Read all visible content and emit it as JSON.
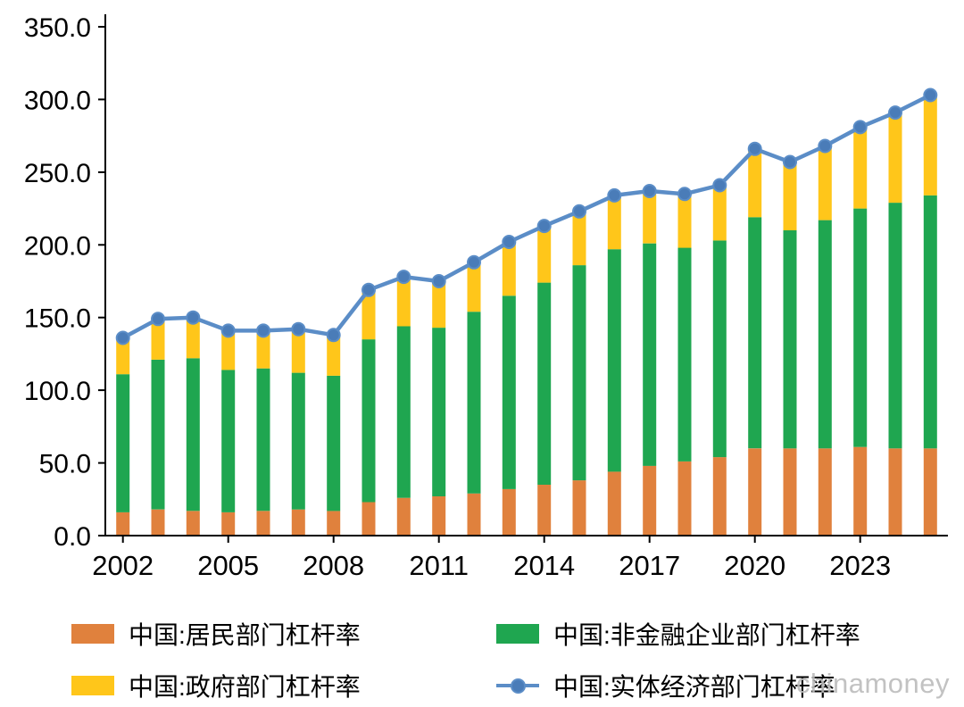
{
  "watermark": "chinamoney",
  "axes": {
    "y_ticks": [
      "350.0",
      "300.0",
      "250.0",
      "200.0",
      "150.0",
      "100.0",
      "50.0",
      "0.0"
    ],
    "x_ticks": [
      "2002",
      "2005",
      "2008",
      "2011",
      "2014",
      "2017",
      "2020",
      "2023"
    ]
  },
  "legend": {
    "items": [
      {
        "label": "中国:居民部门杠杆率",
        "color": "#E0813D",
        "marker": "rect"
      },
      {
        "label": "中国:非金融企业部门杠杆率",
        "color": "#1FA650",
        "marker": "rect"
      },
      {
        "label": "中国:政府部门杠杆率",
        "color": "#FFC61A",
        "marker": "rect"
      },
      {
        "label": "中国:实体经济部门杠杆率",
        "color": "#5B8DC7",
        "marker": "line-dot",
        "marker_fill": "#4A7CB8"
      }
    ]
  },
  "chart_data": {
    "type": "bar",
    "subtype": "stacked-bar-with-line-overlay",
    "title": "",
    "xlabel": "",
    "ylabel": "",
    "ylim": [
      0,
      350
    ],
    "y_tick_step": 50,
    "x_tick_every": 3,
    "grid": false,
    "stacked": true,
    "legend_position": "bottom",
    "categories": [
      "2002",
      "2003",
      "2004",
      "2005",
      "2006",
      "2007",
      "2008",
      "2009",
      "2010",
      "2011",
      "2012",
      "2013",
      "2014",
      "2015",
      "2016",
      "2017",
      "2018",
      "2019",
      "2020",
      "2021",
      "2022",
      "2023",
      "2024",
      "2025"
    ],
    "series": [
      {
        "name": "中国:居民部门杠杆率",
        "kind": "bar",
        "color": "#E0813D",
        "values": [
          16,
          18,
          17,
          16,
          17,
          18,
          17,
          23,
          26,
          27,
          29,
          32,
          35,
          38,
          44,
          48,
          51,
          54,
          60,
          60,
          60,
          61,
          60,
          60
        ]
      },
      {
        "name": "中国:非金融企业部门杠杆率",
        "kind": "bar",
        "color": "#1FA650",
        "values": [
          95,
          103,
          105,
          98,
          98,
          94,
          93,
          112,
          118,
          116,
          125,
          133,
          139,
          148,
          153,
          153,
          147,
          149,
          159,
          150,
          157,
          164,
          169,
          174
        ]
      },
      {
        "name": "中国:政府部门杠杆率",
        "kind": "bar",
        "color": "#FFC61A",
        "values": [
          25,
          28,
          28,
          27,
          26,
          30,
          28,
          34,
          34,
          32,
          34,
          37,
          39,
          37,
          37,
          36,
          37,
          38,
          47,
          47,
          51,
          56,
          62,
          69
        ]
      },
      {
        "name": "中国:实体经济部门杠杆率",
        "kind": "line",
        "color": "#5B8DC7",
        "marker_fill": "#4A7CB8",
        "values": [
          136,
          149,
          150,
          141,
          141,
          142,
          138,
          169,
          178,
          175,
          188,
          202,
          213,
          223,
          234,
          237,
          235,
          241,
          266,
          257,
          268,
          281,
          291,
          303
        ]
      }
    ]
  }
}
